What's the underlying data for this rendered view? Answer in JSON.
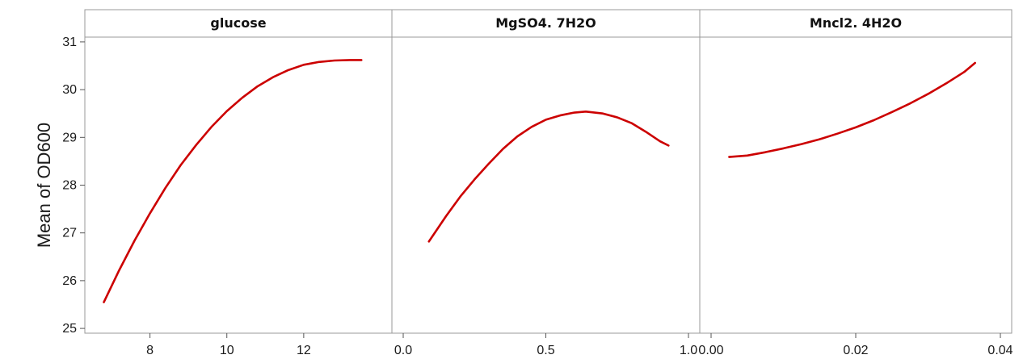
{
  "chart_data": {
    "type": "line",
    "ylabel": "Mean of OD600",
    "ylim": [
      24.9,
      31.1
    ],
    "yticks": [
      25,
      26,
      27,
      28,
      29,
      30,
      31
    ],
    "line_color": "#cc0000",
    "panels": [
      {
        "title": "glucose",
        "xlim": [
          6.6,
          14.0
        ],
        "xticks": [
          8,
          10,
          12
        ],
        "x": [
          6.8,
          7.2,
          7.6,
          8.0,
          8.4,
          8.8,
          9.2,
          9.6,
          10.0,
          10.4,
          10.8,
          11.2,
          11.6,
          12.0,
          12.4,
          12.8,
          13.2,
          13.5
        ],
        "y": [
          25.55,
          26.22,
          26.84,
          27.41,
          27.94,
          28.42,
          28.84,
          29.22,
          29.55,
          29.83,
          30.07,
          30.26,
          30.41,
          30.52,
          30.58,
          30.61,
          30.62,
          30.62
        ]
      },
      {
        "title": "MgSO4. 7H2O",
        "xlim": [
          0.0,
          1.0
        ],
        "xticks": [
          0.0,
          0.5,
          1.0
        ],
        "xticklabels": [
          "0.0",
          "0.5",
          "1.0"
        ],
        "x": [
          0.09,
          0.15,
          0.2,
          0.25,
          0.3,
          0.35,
          0.4,
          0.45,
          0.5,
          0.55,
          0.6,
          0.64,
          0.7,
          0.75,
          0.8,
          0.85,
          0.9,
          0.93
        ],
        "y": [
          26.82,
          27.35,
          27.76,
          28.12,
          28.45,
          28.76,
          29.02,
          29.22,
          29.37,
          29.46,
          29.52,
          29.54,
          29.5,
          29.42,
          29.3,
          29.12,
          28.92,
          28.83
        ]
      },
      {
        "title": "Mncl2. 4H2O",
        "xlim": [
          0.0,
          0.04
        ],
        "xticks": [
          0.0,
          0.02,
          0.04
        ],
        "xticklabels": [
          "0.00",
          "0.02",
          "0.04"
        ],
        "x": [
          0.0025,
          0.005,
          0.0075,
          0.01,
          0.0125,
          0.015,
          0.0175,
          0.02,
          0.0225,
          0.025,
          0.0275,
          0.03,
          0.0325,
          0.035,
          0.0365
        ],
        "y": [
          28.59,
          28.62,
          28.69,
          28.77,
          28.86,
          28.96,
          29.08,
          29.21,
          29.36,
          29.53,
          29.71,
          29.91,
          30.13,
          30.37,
          30.56
        ]
      }
    ]
  }
}
